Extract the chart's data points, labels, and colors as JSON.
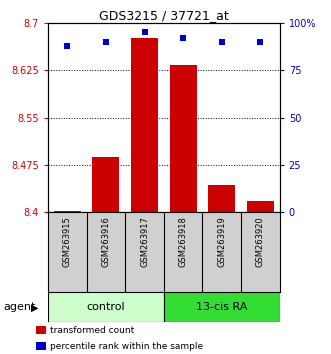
{
  "title": "GDS3215 / 37721_at",
  "samples": [
    "GSM263915",
    "GSM263916",
    "GSM263917",
    "GSM263918",
    "GSM263919",
    "GSM263920"
  ],
  "groups": [
    "control",
    "control",
    "control",
    "13-cis RA",
    "13-cis RA",
    "13-cis RA"
  ],
  "bar_values": [
    8.402,
    8.488,
    8.676,
    8.634,
    8.444,
    8.418
  ],
  "percentile_values": [
    88,
    90,
    95,
    92,
    90,
    90
  ],
  "bar_color": "#cc0000",
  "percentile_color": "#0000cc",
  "ymin": 8.4,
  "ymax": 8.7,
  "yticks": [
    8.4,
    8.475,
    8.55,
    8.625,
    8.7
  ],
  "ytick_labels": [
    "8.4",
    "8.475",
    "8.55",
    "8.625",
    "8.7"
  ],
  "right_yticks": [
    0,
    25,
    50,
    75,
    100
  ],
  "right_ytick_labels": [
    "0",
    "25",
    "50",
    "75",
    "100%"
  ],
  "control_color": "#ccffcc",
  "ra_color": "#33dd33",
  "group_label": "agent",
  "legend_items": [
    {
      "label": "transformed count",
      "color": "#cc0000"
    },
    {
      "label": "percentile rank within the sample",
      "color": "#0000cc"
    }
  ],
  "bar_width": 0.7,
  "percentile_marker_size": 25
}
